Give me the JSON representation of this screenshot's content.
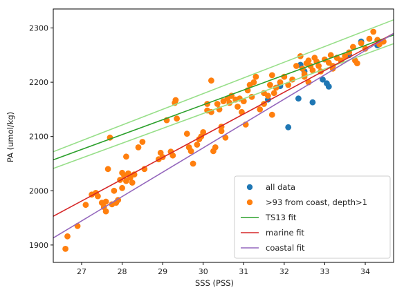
{
  "chart_data": {
    "type": "scatter",
    "title": "",
    "xlabel": "SSS (PSS)",
    "ylabel": "PA (umol/kg)",
    "xlim": [
      26.3,
      34.7
    ],
    "ylim": [
      1868,
      2335
    ],
    "x_ticks": [
      27,
      28,
      29,
      30,
      31,
      32,
      33,
      34
    ],
    "y_ticks": [
      1900,
      2000,
      2100,
      2200,
      2300
    ],
    "x_tick_labels": [
      "27",
      "28",
      "29",
      "30",
      "31",
      "32",
      "33",
      "34"
    ],
    "y_tick_labels": [
      "1900",
      "2000",
      "2100",
      "2200",
      "2300"
    ],
    "grid": false,
    "legend_position": "lower right",
    "series": [
      {
        "name": "all data",
        "kind": "scatter",
        "color": "#1f77b4",
        "points": [
          [
            31.6,
            2168
          ],
          [
            32.1,
            2117
          ],
          [
            32.35,
            2170
          ],
          [
            32.7,
            2163
          ],
          [
            32.95,
            2205
          ],
          [
            33.05,
            2198
          ],
          [
            33.1,
            2192
          ],
          [
            32.4,
            2232
          ],
          [
            31.9,
            2193
          ],
          [
            33.9,
            2275
          ],
          [
            34.3,
            2268
          ],
          [
            33.6,
            2250
          ],
          [
            32.5,
            2220
          ]
        ]
      },
      {
        "name": ">93 from coast, depth>1",
        "kind": "scatter",
        "color": "#ff7f0e",
        "points": [
          [
            26.6,
            1893
          ],
          [
            26.65,
            1916
          ],
          [
            26.9,
            1935
          ],
          [
            27.1,
            1974
          ],
          [
            27.25,
            1993
          ],
          [
            27.35,
            1996
          ],
          [
            27.4,
            1990
          ],
          [
            27.5,
            1978
          ],
          [
            27.55,
            1970
          ],
          [
            27.6,
            1962
          ],
          [
            27.6,
            1980
          ],
          [
            27.65,
            2040
          ],
          [
            27.7,
            2098
          ],
          [
            27.75,
            1975
          ],
          [
            27.8,
            2000
          ],
          [
            27.85,
            1978
          ],
          [
            27.9,
            1983
          ],
          [
            27.95,
            2020
          ],
          [
            28.0,
            2005
          ],
          [
            28.0,
            2033
          ],
          [
            28.05,
            2028
          ],
          [
            28.1,
            2018
          ],
          [
            28.15,
            2032
          ],
          [
            28.2,
            2024
          ],
          [
            28.25,
            2015
          ],
          [
            28.3,
            2030
          ],
          [
            28.1,
            2063
          ],
          [
            28.4,
            2080
          ],
          [
            28.5,
            2090
          ],
          [
            28.55,
            2040
          ],
          [
            28.9,
            2058
          ],
          [
            28.95,
            2070
          ],
          [
            29.0,
            2062
          ],
          [
            29.1,
            2130
          ],
          [
            29.2,
            2072
          ],
          [
            29.25,
            2065
          ],
          [
            29.3,
            2162
          ],
          [
            29.32,
            2167
          ],
          [
            29.35,
            2133
          ],
          [
            29.6,
            2105
          ],
          [
            29.65,
            2080
          ],
          [
            29.7,
            2073
          ],
          [
            29.75,
            2050
          ],
          [
            29.85,
            2085
          ],
          [
            29.9,
            2095
          ],
          [
            29.95,
            2100
          ],
          [
            30.0,
            2108
          ],
          [
            30.1,
            2148
          ],
          [
            30.1,
            2160
          ],
          [
            30.2,
            2145
          ],
          [
            30.2,
            2203
          ],
          [
            30.25,
            2073
          ],
          [
            30.3,
            2080
          ],
          [
            30.35,
            2160
          ],
          [
            30.4,
            2150
          ],
          [
            30.45,
            2118
          ],
          [
            30.45,
            2110
          ],
          [
            30.5,
            2165
          ],
          [
            30.55,
            2098
          ],
          [
            30.6,
            2170
          ],
          [
            30.65,
            2162
          ],
          [
            30.7,
            2175
          ],
          [
            30.8,
            2168
          ],
          [
            30.85,
            2155
          ],
          [
            30.9,
            2170
          ],
          [
            31.0,
            2165
          ],
          [
            31.05,
            2122
          ],
          [
            31.1,
            2185
          ],
          [
            31.15,
            2195
          ],
          [
            31.2,
            2173
          ],
          [
            31.25,
            2200
          ],
          [
            31.3,
            2210
          ],
          [
            31.4,
            2150
          ],
          [
            31.5,
            2160
          ],
          [
            31.6,
            2175
          ],
          [
            31.65,
            2195
          ],
          [
            31.7,
            2213
          ],
          [
            31.7,
            2140
          ],
          [
            31.75,
            2180
          ],
          [
            31.8,
            2190
          ],
          [
            31.9,
            2200
          ],
          [
            32.0,
            2210
          ],
          [
            32.1,
            2195
          ],
          [
            32.2,
            2205
          ],
          [
            32.3,
            2230
          ],
          [
            32.4,
            2248
          ],
          [
            32.45,
            2225
          ],
          [
            32.5,
            2215
          ],
          [
            32.55,
            2235
          ],
          [
            32.6,
            2240
          ],
          [
            32.65,
            2230
          ],
          [
            32.7,
            2222
          ],
          [
            32.75,
            2245
          ],
          [
            32.8,
            2238
          ],
          [
            32.85,
            2230
          ],
          [
            32.9,
            2220
          ],
          [
            33.0,
            2242
          ],
          [
            33.1,
            2236
          ],
          [
            33.15,
            2250
          ],
          [
            33.2,
            2230
          ],
          [
            33.3,
            2245
          ],
          [
            33.4,
            2240
          ],
          [
            33.5,
            2248
          ],
          [
            33.6,
            2255
          ],
          [
            33.7,
            2265
          ],
          [
            33.75,
            2240
          ],
          [
            33.8,
            2235
          ],
          [
            33.9,
            2272
          ],
          [
            34.0,
            2262
          ],
          [
            34.1,
            2280
          ],
          [
            34.2,
            2293
          ],
          [
            34.3,
            2278
          ],
          [
            34.35,
            2270
          ],
          [
            34.45,
            2275
          ],
          [
            32.5,
            2210
          ],
          [
            32.6,
            2200
          ],
          [
            33.2,
            2225
          ],
          [
            31.5,
            2180
          ],
          [
            30.95,
            2145
          ]
        ]
      },
      {
        "name": "TS13 fit",
        "kind": "line",
        "color": "#2ca02c",
        "endpoints": [
          [
            26.3,
            2057
          ],
          [
            34.7,
            2287
          ]
        ],
        "band_color": "#98df8a",
        "band_upper": [
          [
            26.3,
            2072
          ],
          [
            34.7,
            2315
          ]
        ],
        "band_lower": [
          [
            26.3,
            2041
          ],
          [
            34.7,
            2271
          ]
        ]
      },
      {
        "name": "marine fit",
        "kind": "line",
        "color": "#d62728",
        "endpoints": [
          [
            26.3,
            1953
          ],
          [
            34.7,
            2290
          ]
        ]
      },
      {
        "name": "coastal fit",
        "kind": "line",
        "color": "#9467bd",
        "endpoints": [
          [
            26.3,
            1913
          ],
          [
            34.7,
            2290
          ]
        ]
      }
    ]
  }
}
